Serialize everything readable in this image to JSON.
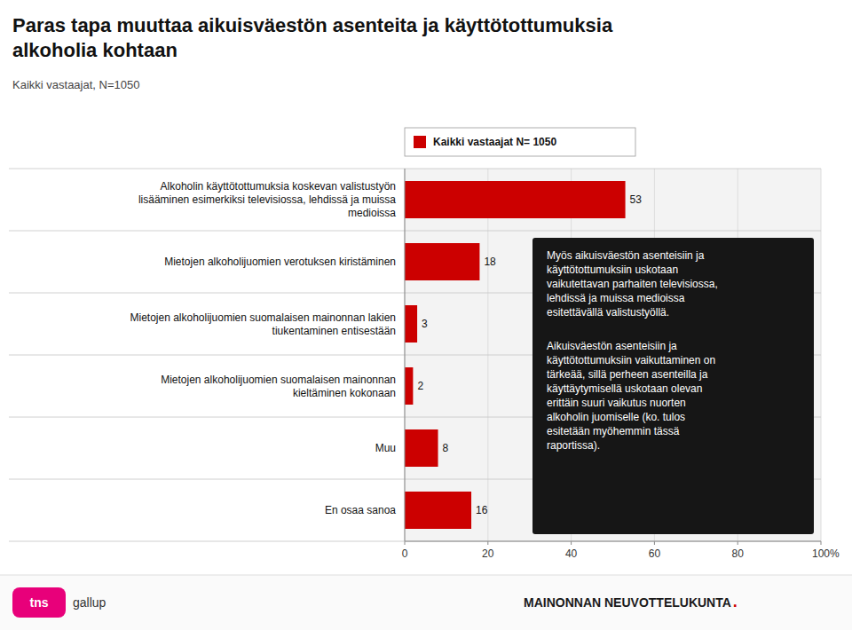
{
  "chart_data": {
    "type": "bar",
    "orientation": "horizontal",
    "title": "Paras tapa muuttaa aikuisväestön asenteita ja käyttötottumuksia\nalkoholia kohtaan",
    "subtitle": "Kaikki vastaajat, N=1050",
    "categories": [
      "Alkoholin käyttötottumuksia koskevan valistustyön\nlisääminen esimerkiksi televisiossa, lehdissä ja muissa\nmedioissa",
      "Mietojen alkoholijuomien verotuksen kiristäminen",
      "Mietojen alkoholijuomien suomalaisen mainonnan lakien\ntiukentaminen entisestään",
      "Mietojen alkoholijuomien suomalaisen mainonnan\nkieltäminen kokonaan",
      "Muu",
      "En osaa sanoa"
    ],
    "series": [
      {
        "name": "Kaikki vastaajat N= 1050",
        "color": "#cc0000",
        "values": [
          53,
          18,
          3,
          2,
          8,
          16
        ]
      }
    ],
    "x_label": "%",
    "xlim": [
      0,
      100
    ],
    "xticks": [
      0,
      20,
      40,
      60,
      80,
      100
    ],
    "grid": true,
    "legend": "top-left",
    "data_labels": true,
    "annotations": [
      "Myös aikuisväestön asenteisiin ja\nkäyttötottumuksiin uskotaan\nvaikutettavan parhaiten televisiossa,\nlehdissä ja muissa medioissa\nesitettävällä valistustyöllä.",
      "Aikuisväestön asenteisiin ja\nkäyttötottumuksiin vaikuttaminen on\ntärkeää, sillä perheen asenteilla ja\nkäyttäytymisellä uskotaan olevan\nerittäin suuri vaikutus nuorten\nalkoholin juomiselle (ko. tulos\nesitetään myöhemmin tässä\nraportissa)."
    ],
    "footer": [
      "tns",
      "gallup",
      "MAINONNAN NEUVOTTELUKUNTA",
      "."
    ]
  }
}
